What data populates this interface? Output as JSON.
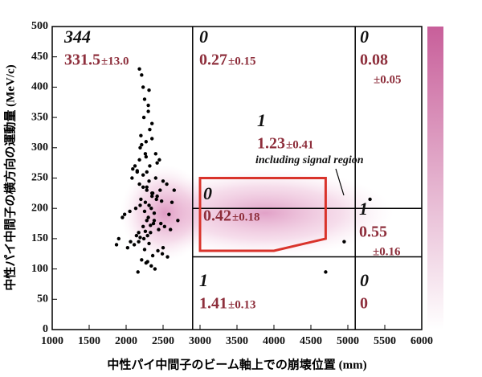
{
  "chart_data": {
    "type": "scatter",
    "xlabel": "中性パイ中間子のビーム軸上での崩壊位置 (mm)",
    "ylabel": "中性パイ中間子の横方向の運動量 (MeV/c)",
    "xlim": [
      1000,
      6000
    ],
    "xticks": [
      1000,
      1500,
      2000,
      2500,
      3000,
      3500,
      4000,
      4500,
      5000,
      5500,
      6000
    ],
    "ylim": [
      0,
      500
    ],
    "yticks": [
      0,
      50,
      100,
      150,
      200,
      250,
      300,
      350,
      400,
      450,
      500
    ],
    "color": "#000000",
    "x": [
      2210,
      2180,
      2250,
      2300,
      2350,
      2270,
      2190,
      2400,
      2450,
      2320,
      2150,
      2080,
      2500,
      2550,
      2230,
      2280,
      2360,
      2420,
      2200,
      2260,
      2310,
      2130,
      2050,
      1980,
      1950,
      2380,
      2470,
      2520,
      2600,
      2330,
      2290,
      2240,
      2170,
      2110,
      2020,
      2430,
      2490,
      2560,
      2210,
      2270,
      2340,
      2390,
      2160,
      2090,
      2230,
      2310,
      2280,
      2350,
      2410,
      2190,
      2250,
      2300,
      2370,
      2440,
      2140,
      2060,
      2500,
      2580,
      2620,
      2200,
      2320,
      2260,
      2180,
      2120,
      2400,
      2460,
      2340,
      2280,
      2230,
      2170,
      1900,
      1870,
      2650,
      2700,
      2240,
      2300,
      2350,
      2210,
      2270,
      2420,
      2150,
      2480,
      2380,
      2330,
      2260,
      2190,
      2310,
      2250,
      2360,
      2290,
      2230,
      2310,
      2180,
      2350,
      2280,
      5300,
      4950,
      4700
    ],
    "values": [
      420,
      430,
      380,
      360,
      340,
      310,
      300,
      290,
      280,
      270,
      260,
      250,
      245,
      240,
      235,
      230,
      225,
      220,
      215,
      210,
      205,
      200,
      195,
      190,
      185,
      180,
      175,
      170,
      165,
      160,
      155,
      150,
      145,
      140,
      135,
      130,
      125,
      120,
      115,
      110,
      105,
      100,
      95,
      265,
      255,
      245,
      235,
      225,
      215,
      205,
      195,
      185,
      175,
      165,
      155,
      145,
      135,
      190,
      210,
      320,
      330,
      290,
      280,
      270,
      250,
      230,
      200,
      180,
      170,
      160,
      150,
      140,
      230,
      180,
      350,
      370,
      315,
      305,
      285,
      275,
      262,
      212,
      192,
      172,
      162,
      152,
      142,
      132,
      122,
      112,
      400,
      395,
      240,
      220,
      260,
      215,
      145,
      95
    ],
    "cut_x": [
      2900,
      5100
    ],
    "cut_y": [
      120,
      200
    ],
    "signal_box": {
      "x": [
        3000,
        4000,
        4700,
        4700,
        3000
      ],
      "y": [
        130,
        130,
        150,
        250,
        250
      ],
      "color": "#d9332b"
    },
    "annotations": [
      {
        "count": "344",
        "estimate": "331.5",
        "error": "±13.0"
      },
      {
        "count": "0",
        "estimate": "0.27",
        "error": "±0.15"
      },
      {
        "count": "0",
        "estimate": "0.08",
        "error": "±0.05"
      },
      {
        "count": "1",
        "estimate": "1.23",
        "error": "±0.41",
        "note": "including signal region"
      },
      {
        "count": "0",
        "estimate": "0.42",
        "error": "±0.18"
      },
      {
        "count": "1",
        "estimate": "0.55",
        "error": "±0.16"
      },
      {
        "count": "1",
        "estimate": "1.41",
        "error": "±0.13"
      },
      {
        "count": "0",
        "estimate": "0"
      }
    ]
  }
}
